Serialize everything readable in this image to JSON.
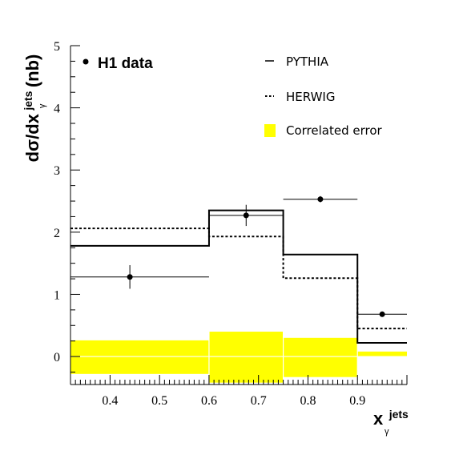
{
  "chart_data": {
    "type": "histogram",
    "xlabel": "x",
    "xlabel_sup": "jets",
    "xlabel_sub": "γ",
    "ylabel": "dσ/dx",
    "ylabel_sup": "jets",
    "ylabel_sub": "γ",
    "ylabel_unit": "(nb)",
    "xlim": [
      0.32,
      1.0
    ],
    "ylim": [
      -0.45,
      5.0
    ],
    "x_ticks": [
      "0.4",
      "0.5",
      "0.6",
      "0.7",
      "0.8",
      "0.9"
    ],
    "y_ticks": [
      "0",
      "1",
      "2",
      "3",
      "4",
      "5"
    ],
    "bins": [
      [
        0.32,
        0.6
      ],
      [
        0.6,
        0.75
      ],
      [
        0.75,
        0.9
      ],
      [
        0.9,
        1.0
      ]
    ],
    "series": [
      {
        "name": "H1 data",
        "style": "points",
        "x": [
          0.44,
          0.675,
          0.825,
          0.95
        ],
        "y": [
          1.28,
          2.27,
          2.53,
          0.68
        ],
        "yerr": [
          0.19,
          0.17,
          0.05,
          0.04
        ]
      },
      {
        "name": "PYTHIA",
        "style": "solid",
        "values": [
          1.78,
          2.35,
          1.64,
          0.22
        ]
      },
      {
        "name": "HERWIG",
        "style": "dotted",
        "values": [
          2.06,
          1.93,
          1.26,
          0.45
        ]
      },
      {
        "name": "Correlated error",
        "style": "band",
        "color": "#ffff00",
        "low": [
          -0.28,
          -0.42,
          -0.33,
          0.0
        ],
        "high": [
          0.26,
          0.4,
          0.3,
          0.08
        ]
      }
    ],
    "legend": {
      "placement": "top",
      "data_label": "H1 data",
      "pythia_label": "PYTHIA",
      "herwig_label": "HERWIG",
      "band_label": "Correlated error"
    },
    "grid": false
  }
}
